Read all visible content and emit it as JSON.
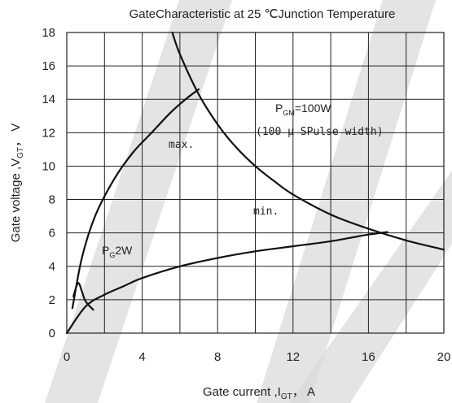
{
  "chart_data": {
    "type": "line",
    "title": "GateCharacteristic at 25 ℃Junction Temperature",
    "xlabel": "Gate current ,I",
    "xlabel_sub": "GT",
    "xlabel_unit": "， A",
    "ylabel": "Gate voltage ,V",
    "ylabel_sub": "GT",
    "ylabel_unit": "， V",
    "xlim": [
      0,
      20
    ],
    "ylim": [
      0,
      18
    ],
    "x_ticks": [
      0,
      4,
      8,
      12,
      16,
      20
    ],
    "y_ticks": [
      0,
      2,
      4,
      6,
      8,
      10,
      12,
      14,
      16,
      18
    ],
    "grid": true,
    "series": [
      {
        "key": "max",
        "x": [
          0.3,
          0.8,
          1.5,
          2.5,
          3.5,
          4.5,
          5.5,
          6.3,
          7.0
        ],
        "y": [
          1.5,
          4.5,
          7.0,
          9.2,
          10.8,
          12.0,
          13.2,
          14.0,
          14.6
        ]
      },
      {
        "key": "min",
        "x": [
          0.0,
          1.0,
          2.0,
          3.0,
          4.0,
          6.0,
          8.0,
          10.0,
          12.0,
          14.0,
          15.0,
          16.0,
          17.0
        ],
        "y": [
          0.0,
          1.6,
          2.3,
          2.8,
          3.3,
          4.0,
          4.5,
          4.9,
          5.2,
          5.5,
          5.7,
          5.9,
          6.05
        ]
      },
      {
        "key": "pgm",
        "x": [
          5.6,
          6.0,
          7.0,
          8.0,
          9.0,
          10.0,
          11.0,
          12.0,
          14.0,
          16.0,
          18.0,
          20.0
        ],
        "y": [
          18.0,
          16.7,
          14.3,
          12.5,
          11.1,
          10.0,
          9.1,
          8.3,
          7.1,
          6.25,
          5.55,
          5.0
        ]
      },
      {
        "key": "pg",
        "x": [
          0.35,
          0.6,
          0.8,
          1.0,
          1.4
        ],
        "y": [
          2.2,
          3.0,
          2.5,
          1.9,
          1.4
        ]
      }
    ],
    "annotations": {
      "max_label": "max.",
      "min_label": "min.",
      "pgm_label_main": "P",
      "pgm_label_sub": "GM",
      "pgm_label_value": "=100W",
      "pulse_label": "(100 μ SPulse width)",
      "pg_label_main": "P",
      "pg_label_sub": "G",
      "pg_label_value": "2W"
    },
    "colors": {
      "curve": "#111111",
      "grid": "#222222",
      "watermark": "#d9d9d9"
    }
  }
}
